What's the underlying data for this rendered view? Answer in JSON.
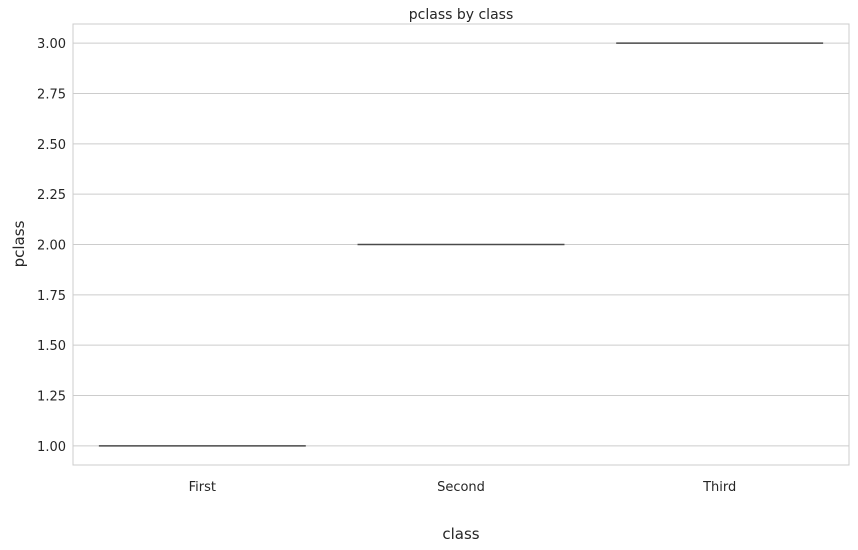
{
  "chart_data": {
    "type": "box",
    "title": "pclass by class",
    "xlabel": "class",
    "ylabel": "pclass",
    "categories": [
      "First",
      "Second",
      "Third"
    ],
    "values": [
      1.0,
      2.0,
      3.0
    ],
    "ylim": [
      0.905,
      3.095
    ],
    "yticks": [
      1.0,
      1.25,
      1.5,
      1.75,
      2.0,
      2.25,
      2.5,
      2.75,
      3.0
    ],
    "ytick_labels": [
      "1.00",
      "1.25",
      "1.50",
      "1.75",
      "2.00",
      "2.25",
      "2.50",
      "2.75",
      "3.00"
    ],
    "grid": true,
    "box_color": "#4a4a4a",
    "grid_color": "#cccccc",
    "frame_color": "#cccccc"
  }
}
